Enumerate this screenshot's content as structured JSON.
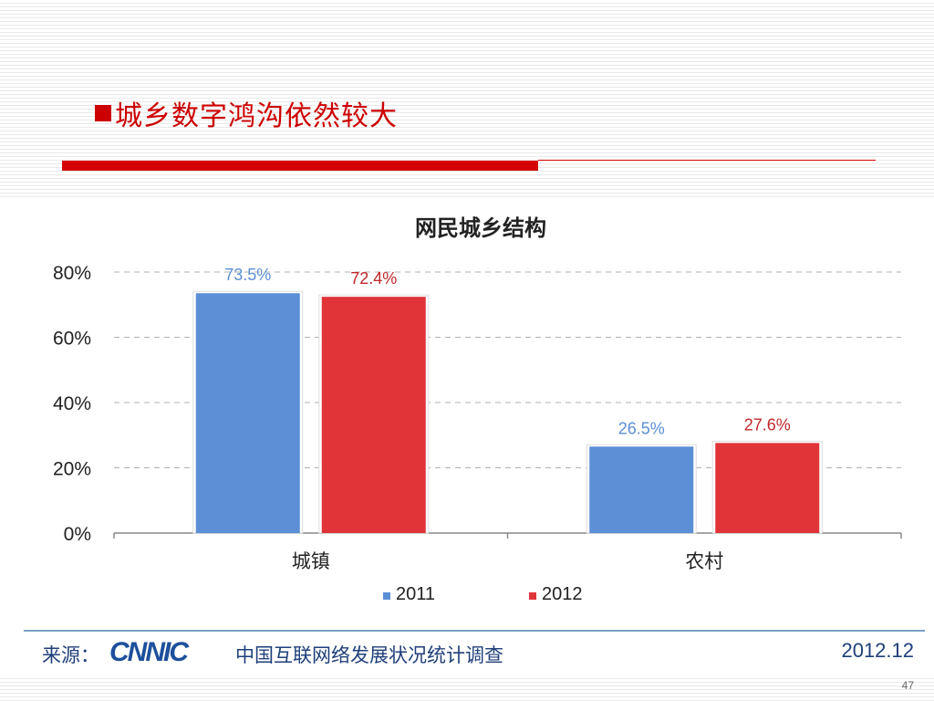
{
  "slide": {
    "title": "城乡数字鸿沟依然较大",
    "page_number": "47"
  },
  "colors": {
    "title_red": "#cc0000",
    "series_2011": "#5b8fd6",
    "series_2012": "#e03438",
    "label_2011": "#5b8fd6",
    "label_2012": "#c0282b"
  },
  "source": {
    "label": "来源：",
    "logo_text": "CNNIC",
    "org": "中国互联网络发展状况统计调查",
    "date": "2012.12"
  },
  "chart_data": {
    "type": "bar",
    "title": "网民城乡结构",
    "categories": [
      "城镇",
      "农村"
    ],
    "series": [
      {
        "name": "2011",
        "values": [
          73.5,
          26.5
        ],
        "labels": [
          "73.5%",
          "26.5%"
        ],
        "color": "#5b8fd6"
      },
      {
        "name": "2012",
        "values": [
          72.4,
          27.6
        ],
        "labels": [
          "72.4%",
          "27.6%"
        ],
        "color": "#e03438"
      }
    ],
    "ylim": [
      0,
      80
    ],
    "yticks": [
      "0%",
      "20%",
      "40%",
      "60%",
      "80%"
    ],
    "grid": true,
    "legend": "bottom",
    "xlabel": "",
    "ylabel": ""
  }
}
